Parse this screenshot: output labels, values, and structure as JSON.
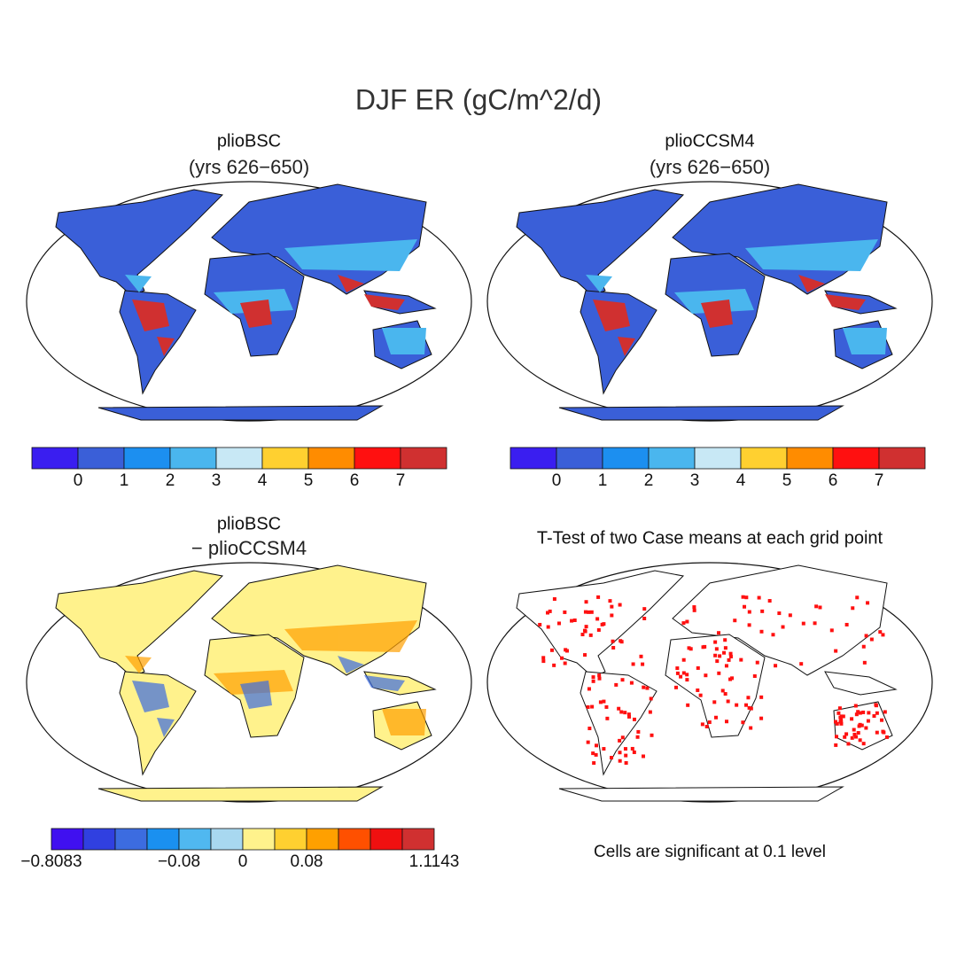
{
  "title": "DJF ER (gC/m^2/d)",
  "panels": [
    {
      "title": "plioBSC",
      "subtitle": "(yrs 626−650)",
      "colorbar": {
        "colors": [
          "#3a1ef0",
          "#3a5fd8",
          "#1c8ff0",
          "#4ab6ee",
          "#c8e8f5",
          "#ffd030",
          "#ff8c00",
          "#ff1010",
          "#d03030"
        ],
        "ticks": [
          0,
          1,
          2,
          3,
          4,
          5,
          6,
          7
        ]
      }
    },
    {
      "title": "plioCCSM4",
      "subtitle": "(yrs 626−650)",
      "colorbar": {
        "colors": [
          "#3a1ef0",
          "#3a5fd8",
          "#1c8ff0",
          "#4ab6ee",
          "#c8e8f5",
          "#ffd030",
          "#ff8c00",
          "#ff1010",
          "#d03030"
        ],
        "ticks": [
          0,
          1,
          2,
          3,
          4,
          5,
          6,
          7
        ]
      }
    },
    {
      "title": "plioBSC",
      "subtitle": "− plioCCSM4",
      "colorbar": {
        "colors": [
          "#4010f0",
          "#3040e0",
          "#3c6ce0",
          "#1a90f0",
          "#50b8f0",
          "#a8d8f0",
          "#fff28c",
          "#ffd030",
          "#ffa000",
          "#ff5000",
          "#f01010",
          "#d03030"
        ],
        "ticks": [
          {
            "value": -0.8083,
            "label": "−0.8083"
          },
          {
            "value": -0.08,
            "label": "−0.08"
          },
          0,
          0.08,
          1.1143
        ]
      }
    },
    {
      "title": "T-Test of two Case means at each grid point",
      "note": "Cells are significant at 0.1 level"
    }
  ]
}
